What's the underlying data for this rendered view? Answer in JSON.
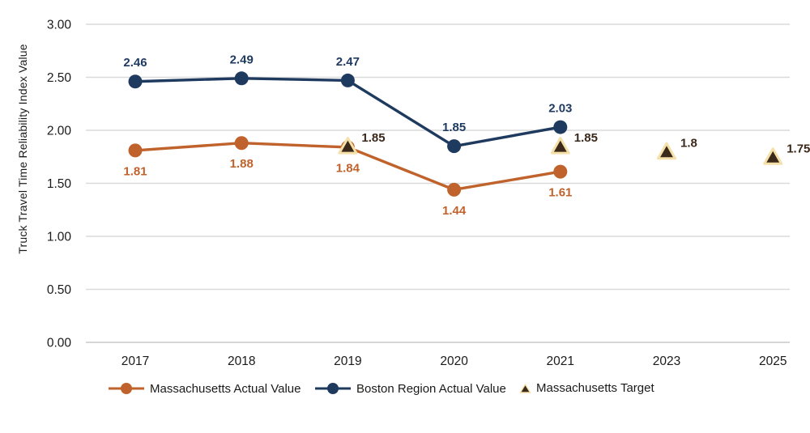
{
  "chart_data": {
    "type": "line",
    "title": "",
    "xlabel": "",
    "ylabel": "Truck Travel Time Reliability Index Value",
    "categories": [
      "2017",
      "2018",
      "2019",
      "2020",
      "2021",
      "2023",
      "2025"
    ],
    "ylim": [
      0,
      3
    ],
    "grid": true,
    "legend_position": "bottom",
    "y_ticks": [
      {
        "value": 3.0,
        "label": "3.00"
      },
      {
        "value": 2.5,
        "label": "2.50"
      },
      {
        "value": 2.0,
        "label": "2.00"
      },
      {
        "value": 1.5,
        "label": "1.50"
      },
      {
        "value": 1.0,
        "label": "1.00"
      },
      {
        "value": 0.5,
        "label": "0.50"
      },
      {
        "value": 0.0,
        "label": "0.00"
      }
    ],
    "series": [
      {
        "name": "Massachusetts Actual Value",
        "marker": "circle",
        "line": true,
        "color": "#C0622B",
        "label_color": "#C0622B",
        "label_position": "below",
        "values": [
          1.81,
          1.88,
          1.84,
          1.44,
          1.61,
          null,
          null
        ],
        "data_labels": [
          "1.81",
          "1.88",
          "1.84",
          "1.44",
          "1.61",
          null,
          null
        ]
      },
      {
        "name": "Boston Region Actual Value",
        "marker": "circle",
        "line": true,
        "color": "#1F3A5F",
        "label_color": "#1F3A5F",
        "label_position": "above",
        "values": [
          2.46,
          2.49,
          2.47,
          1.85,
          2.03,
          null,
          null
        ],
        "data_labels": [
          "2.46",
          "2.49",
          "2.47",
          "1.85",
          "2.03",
          null,
          null
        ]
      },
      {
        "name": "Massachusetts Target",
        "marker": "triangle",
        "line": false,
        "color": "#3B2A1A",
        "marker_outline": "#F5E0A9",
        "label_color": "#3B281A",
        "label_position": "right",
        "values": [
          null,
          null,
          1.85,
          null,
          1.85,
          1.8,
          1.75
        ],
        "data_labels": [
          null,
          null,
          "1.85",
          null,
          "1.85",
          "1.8",
          "1.75"
        ]
      }
    ],
    "colors": {
      "gridline": "#DADADA",
      "axis_line": "#C9C9C9",
      "tick_text": "#1A1A1A",
      "legend_text": "#1A1A1A"
    }
  }
}
